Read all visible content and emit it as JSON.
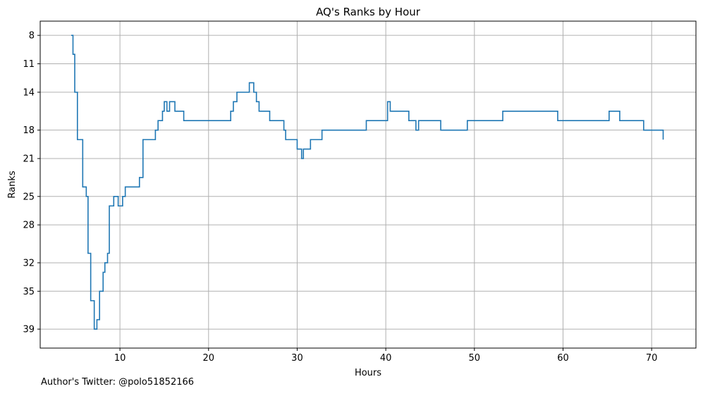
{
  "chart_data": {
    "type": "line",
    "step": true,
    "title": "AQ's Ranks by Hour",
    "xlabel": "Hours",
    "ylabel": "Ranks",
    "x_ticks": [
      10,
      20,
      30,
      40,
      50,
      60,
      70
    ],
    "y_ticks": [
      8,
      11,
      14,
      18,
      21,
      25,
      28,
      32,
      35,
      39
    ],
    "xlim": [
      1,
      75
    ],
    "ylim": [
      41.0,
      6.5
    ],
    "y_inverted": true,
    "grid": true,
    "line_color": "#1f77b4",
    "series": [
      {
        "x": [
          4.5,
          4.7,
          4.9,
          5.2,
          5.8,
          6.2,
          6.4,
          6.7,
          7.1,
          7.4,
          7.7,
          8.1,
          8.3,
          8.6,
          8.8,
          9.3,
          9.8,
          10.3,
          10.6,
          12.2,
          12.6,
          14.0,
          14.3,
          14.8,
          15.0,
          15.3,
          15.6,
          16.2,
          17.2,
          20.6,
          22.5,
          22.8,
          23.2,
          24.6,
          25.1,
          25.4,
          25.7,
          26.9,
          28.5,
          28.7,
          30.0,
          30.5,
          30.7,
          31.5,
          32.3,
          32.8,
          37.8,
          40.2,
          40.5,
          42.6,
          43.4,
          43.7,
          46.2,
          49.2,
          53.2,
          59.4,
          65.2,
          66.4,
          69.1,
          71.3
        ],
        "y": [
          8,
          10,
          14,
          19,
          24,
          25,
          31,
          36,
          39,
          38,
          35,
          33,
          32,
          31,
          26,
          25,
          26,
          25,
          24,
          23,
          19,
          18,
          17,
          16,
          15,
          16,
          15,
          16,
          17,
          17,
          16,
          15,
          14,
          13,
          14,
          15,
          16,
          17,
          18,
          19,
          20,
          21,
          20,
          19,
          19,
          18,
          17,
          15,
          16,
          17,
          18,
          17,
          18,
          17,
          16,
          17,
          16,
          17,
          18,
          19
        ]
      }
    ]
  },
  "footnote": "Author's Twitter: @polo51852166"
}
